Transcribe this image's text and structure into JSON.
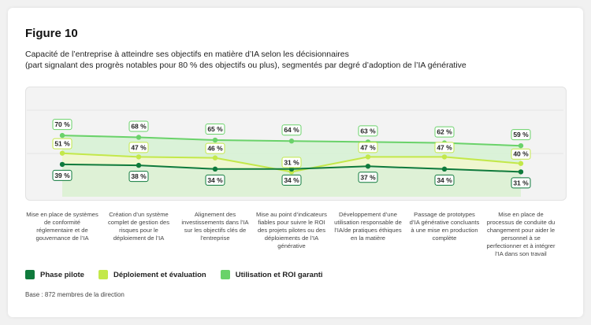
{
  "figure_title": "Figure 10",
  "subtitle_lines": [
    "Capacité de l’entreprise à atteindre ses objectifs en matière d’IA selon les décisionnaires",
    "(part signalant des progrès notables pour 80 % des objectifs ou plus), segmentés par degré d’adoption de l’IA générative"
  ],
  "base_note": "Base : 872 membres de la direction",
  "colors": {
    "phase_pilote": "#0f7a3c",
    "deploiement": "#c3e84a",
    "utilisation": "#6ad26a"
  },
  "chart_data": {
    "type": "line",
    "title": "Capacité de l’entreprise à atteindre ses objectifs en matière d’IA selon les décisionnaires",
    "ylabel": "",
    "xlabel": "",
    "ylim": [
      0,
      100
    ],
    "categories": [
      "Mise en place de systèmes de conformité réglementaire et de gouvernance de l’IA",
      "Création d’un système complet de gestion des risques pour le déploiement de l’IA",
      "Alignement des investissements dans l’IA sur les objectifs clés de l’entreprise",
      "Mise au point d’indicateurs fiables pour suivre le ROI des projets pilotes ou des déploiements de l’IA générative",
      "Développement d’une utilisation responsable de l’IA/de pratiques éthiques en la matière",
      "Passage de prototypes d’IA générative concluants à une mise en production complète",
      "Mise en place de processus de conduite du changement pour aider le personnel à se perfectionner et à intégrer l’IA dans son travail"
    ],
    "series": [
      {
        "name": "Phase pilote",
        "values": [
          39,
          38,
          34,
          34,
          37,
          34,
          31
        ]
      },
      {
        "name": "Déploiement et évaluation",
        "values": [
          51,
          47,
          46,
          31,
          47,
          47,
          40
        ]
      },
      {
        "name": "Utilisation et ROI garanti",
        "values": [
          70,
          68,
          65,
          64,
          63,
          62,
          59
        ]
      }
    ]
  }
}
